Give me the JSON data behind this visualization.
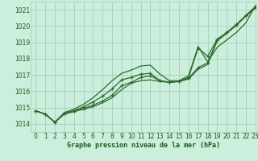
{
  "title": "Graphe pression niveau de la mer (hPa)",
  "bg_color": "#cceedd",
  "grid_color": "#aaccbb",
  "line_color": "#2d6b2d",
  "text_color": "#1a5c1a",
  "xlim": [
    -0.5,
    23
  ],
  "ylim": [
    1013.5,
    1021.5
  ],
  "yticks": [
    1014,
    1015,
    1016,
    1017,
    1018,
    1019,
    1020,
    1021
  ],
  "xticks": [
    0,
    1,
    2,
    3,
    4,
    5,
    6,
    7,
    8,
    9,
    10,
    11,
    12,
    13,
    14,
    15,
    16,
    17,
    18,
    19,
    20,
    21,
    22,
    23
  ],
  "series": [
    {
      "y": [
        1014.8,
        1014.6,
        1014.1,
        1014.6,
        1014.75,
        1014.9,
        1015.05,
        1015.3,
        1015.6,
        1016.1,
        1016.5,
        1016.65,
        1016.7,
        1016.6,
        1016.55,
        1016.6,
        1016.75,
        1017.35,
        1017.65,
        1019.1,
        1019.55,
        1020.05,
        1020.6,
        1021.1
      ],
      "marker": false,
      "linewidth": 0.9
    },
    {
      "y": [
        1014.8,
        1014.6,
        1014.1,
        1014.65,
        1014.8,
        1014.95,
        1015.15,
        1015.4,
        1015.75,
        1016.35,
        1016.55,
        1016.85,
        1016.95,
        1016.65,
        1016.55,
        1016.6,
        1016.8,
        1017.45,
        1017.75,
        1019.15,
        1019.6,
        1020.1,
        1020.65,
        1021.15
      ],
      "marker": true,
      "linewidth": 0.9
    },
    {
      "y": [
        1014.8,
        1014.6,
        1014.1,
        1014.65,
        1014.8,
        1015.05,
        1015.35,
        1015.7,
        1016.15,
        1016.7,
        1016.85,
        1017.05,
        1017.1,
        1016.65,
        1016.55,
        1016.6,
        1016.85,
        1018.65,
        1018.15,
        1019.2,
        1019.6,
        1020.05,
        1020.65,
        1021.2
      ],
      "marker": true,
      "linewidth": 0.9
    },
    {
      "y": [
        1014.8,
        1014.6,
        1014.1,
        1014.7,
        1014.9,
        1015.2,
        1015.6,
        1016.1,
        1016.65,
        1017.1,
        1017.3,
        1017.55,
        1017.6,
        1017.05,
        1016.65,
        1016.65,
        1016.95,
        1018.75,
        1017.8,
        1018.7,
        1019.15,
        1019.6,
        1020.2,
        1021.25
      ],
      "marker": false,
      "linewidth": 0.9
    }
  ],
  "figsize": [
    3.2,
    2.0
  ],
  "dpi": 100
}
